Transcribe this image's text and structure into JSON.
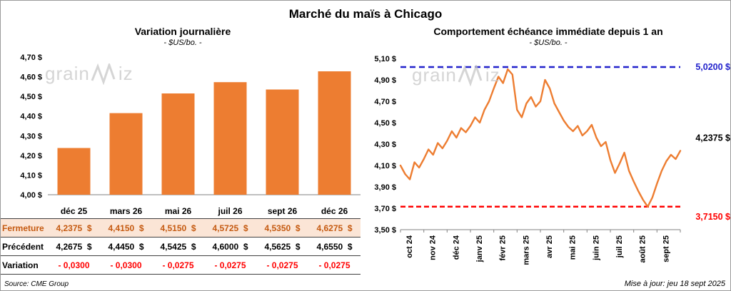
{
  "title": "Marché du maïs à Chicago",
  "watermark": {
    "prefix": "grain",
    "suffix": "iz"
  },
  "footer": {
    "source": "Source: CME Group",
    "updated": "Mise à jour: jeu 18 sept 2025"
  },
  "chart_data": [
    {
      "type": "bar",
      "title": "Variation journalière",
      "subtitle": "- $US/bo. -",
      "categories": [
        "déc 25",
        "mars 26",
        "mai 26",
        "juil 26",
        "sept 26",
        "déc 26"
      ],
      "values": [
        4.2375,
        4.415,
        4.515,
        4.5725,
        4.535,
        4.6275
      ],
      "ylim": [
        4.0,
        4.7
      ],
      "ytick_step": 0.1,
      "ytick_labels": [
        "4,00 $",
        "4,10 $",
        "4,20 $",
        "4,30 $",
        "4,40 $",
        "4,50 $",
        "4,60 $",
        "4,70 $"
      ],
      "bar_color": "#ED7D31",
      "xlabel": "",
      "ylabel": ""
    },
    {
      "type": "line",
      "title": "Comportement échéance immédiate depuis 1 an",
      "subtitle": "- $US/bo. -",
      "x_labels": [
        "oct 24",
        "nov 24",
        "déc 24",
        "janv 25",
        "févr 25",
        "mars 25",
        "avr 25",
        "mai 25",
        "juin 25",
        "juil 25",
        "août 25",
        "sept 25"
      ],
      "values": [
        4.1,
        4.02,
        3.97,
        4.13,
        4.08,
        4.16,
        4.25,
        4.2,
        4.31,
        4.26,
        4.33,
        4.42,
        4.36,
        4.45,
        4.41,
        4.47,
        4.55,
        4.5,
        4.62,
        4.7,
        4.82,
        4.93,
        4.87,
        5.0,
        4.95,
        4.62,
        4.55,
        4.68,
        4.74,
        4.65,
        4.7,
        4.9,
        4.82,
        4.68,
        4.6,
        4.52,
        4.46,
        4.42,
        4.47,
        4.38,
        4.42,
        4.48,
        4.36,
        4.28,
        4.32,
        4.15,
        4.03,
        4.12,
        4.22,
        4.05,
        3.95,
        3.86,
        3.78,
        3.715,
        3.8,
        3.93,
        4.05,
        4.14,
        4.2,
        4.16,
        4.2375
      ],
      "ylim": [
        3.5,
        5.1
      ],
      "ytick_step": 0.2,
      "ytick_labels": [
        "3,50 $",
        "3,70 $",
        "3,90 $",
        "4,10 $",
        "4,30 $",
        "4,50 $",
        "4,70 $",
        "4,90 $",
        "5,10 $"
      ],
      "line_color": "#ED7D31",
      "annotations": {
        "high": {
          "label": "5,0200 $",
          "value": 5.02,
          "color": "#2222CC"
        },
        "last": {
          "label": "4,2375 $",
          "value": 4.2375,
          "color": "#000000"
        },
        "low": {
          "label": "3,7150 $",
          "value": 3.715,
          "color": "#FF0000"
        }
      }
    }
  ],
  "table": {
    "rows": [
      {
        "label": "Fermeture",
        "bg": "#FBE5D6",
        "label_color": "#C55A11",
        "value_color": "#C55A11",
        "values": [
          "4,2375  $",
          "4,4150  $",
          "4,5150  $",
          "4,5725  $",
          "4,5350  $",
          "4,6275  $"
        ]
      },
      {
        "label": "Précédent",
        "bg": "#FFFFFF",
        "label_color": "#000000",
        "value_color": "#000000",
        "values": [
          "4,2675  $",
          "4,4450  $",
          "4,5425  $",
          "4,6000  $",
          "4,5625  $",
          "4,6550  $"
        ]
      },
      {
        "label": "Variation",
        "bg": "#FFFFFF",
        "label_color": "#000000",
        "value_color": "#FF0000",
        "values": [
          "- 0,0300",
          "- 0,0300",
          "- 0,0275",
          "- 0,0275",
          "- 0,0275",
          "- 0,0275"
        ]
      }
    ]
  }
}
